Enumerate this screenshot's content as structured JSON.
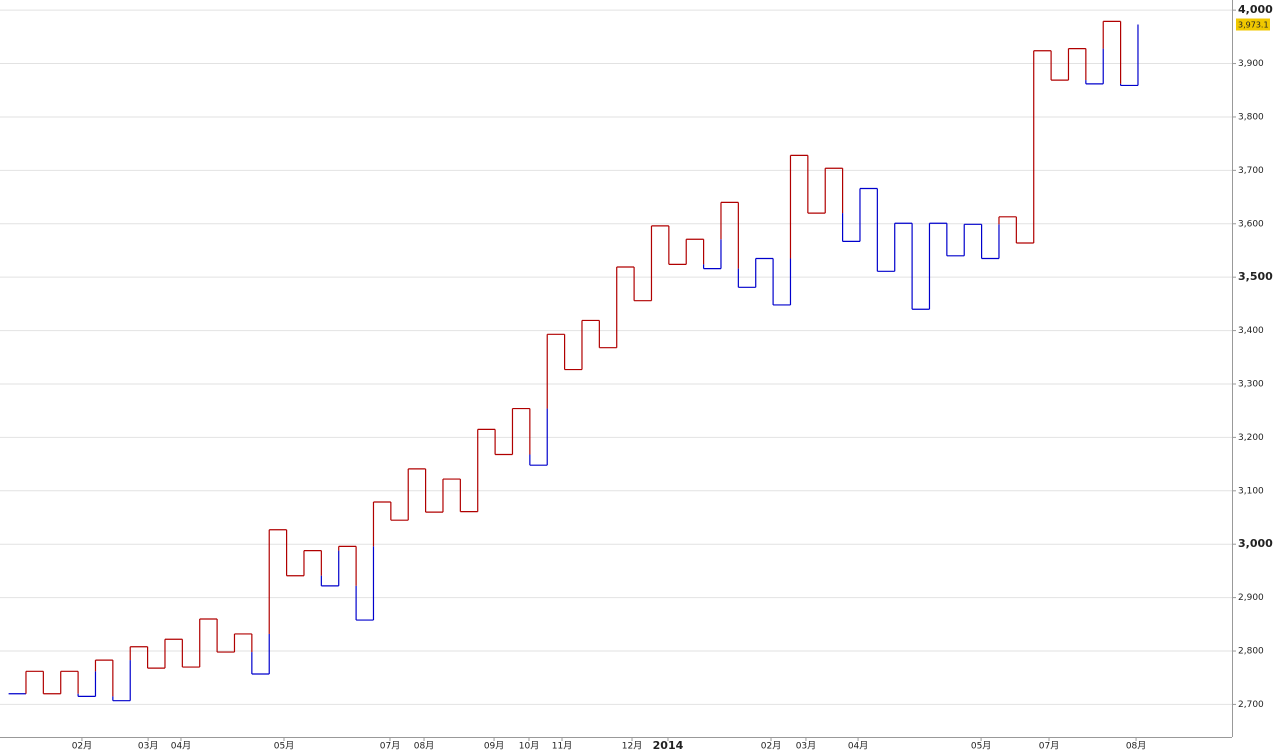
{
  "chart_data": {
    "type": "kagi",
    "values": [
      2720,
      2762,
      2720,
      2762,
      2715,
      2783,
      2707,
      2808,
      2768,
      2822,
      2770,
      2860,
      2798,
      2832,
      2757,
      3027,
      2941,
      2988,
      2922,
      2996,
      2858,
      3079,
      3045,
      3141,
      3060,
      3122,
      3061,
      3215,
      3168,
      3254,
      3148,
      3393,
      3327,
      3419,
      3368,
      3519,
      3456,
      3596,
      3524,
      3571,
      3516,
      3640,
      3481,
      3535,
      3448,
      3728,
      3620,
      3704,
      3567,
      3666,
      3511,
      3601,
      3440,
      3601,
      3540,
      3599,
      3535,
      3613,
      3564,
      3924,
      3869,
      3928,
      3862,
      3979,
      3859,
      3973.1
    ],
    "up_color": "#b00000",
    "down_color": "#0000cc",
    "ylim": [
      2639,
      4019
    ],
    "yticks": [
      {
        "value": 2700,
        "label": "2,700"
      },
      {
        "value": 2800,
        "label": "2,800"
      },
      {
        "value": 2900,
        "label": "2,900"
      },
      {
        "value": 3000,
        "label": "3,000"
      },
      {
        "value": 3100,
        "label": "3,100"
      },
      {
        "value": 3200,
        "label": "3,200"
      },
      {
        "value": 3300,
        "label": "3,300"
      },
      {
        "value": 3400,
        "label": "3,400"
      },
      {
        "value": 3500,
        "label": "3,500"
      },
      {
        "value": 3600,
        "label": "3,600"
      },
      {
        "value": 3700,
        "label": "3,700"
      },
      {
        "value": 3800,
        "label": "3,800"
      },
      {
        "value": 3900,
        "label": "3,900"
      },
      {
        "value": 4000,
        "label": "4,000"
      }
    ],
    "xticks": [
      {
        "value": 4.22,
        "label": "02月"
      },
      {
        "value": 8.03,
        "label": "03月"
      },
      {
        "value": 9.92,
        "label": "04月"
      },
      {
        "value": 15.85,
        "label": "05月"
      },
      {
        "value": 21.95,
        "label": "07月"
      },
      {
        "value": 23.91,
        "label": "08月"
      },
      {
        "value": 27.94,
        "label": "09月"
      },
      {
        "value": 29.95,
        "label": "10月"
      },
      {
        "value": 31.85,
        "label": "11月"
      },
      {
        "value": 35.88,
        "label": "12月"
      },
      {
        "value": 37.95,
        "label": "2014"
      },
      {
        "value": 43.88,
        "label": "02月"
      },
      {
        "value": 45.89,
        "label": "03月"
      },
      {
        "value": 48.89,
        "label": "04月"
      },
      {
        "value": 55.97,
        "label": "05月"
      },
      {
        "value": 59.88,
        "label": "07月"
      },
      {
        "value": 64.89,
        "label": "08月"
      }
    ],
    "grid": true,
    "price_tag": {
      "value": 3973.1,
      "label": "3,973.1",
      "color": "#f0c800"
    }
  }
}
